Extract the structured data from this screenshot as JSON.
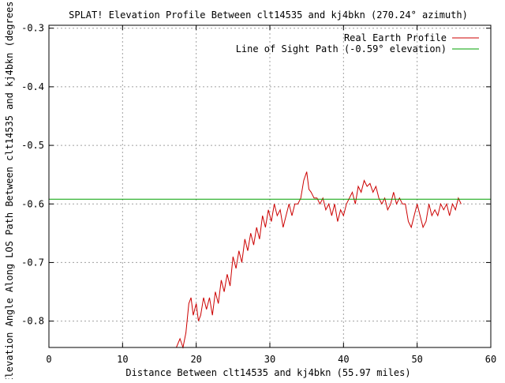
{
  "chart_data": {
    "type": "line",
    "title": "SPLAT! Elevation Profile Between clt14535 and kj4bkn (270.24° azimuth)",
    "xlabel": "Distance Between clt14535 and kj4bkn (55.97 miles)",
    "ylabel": "Elevation Angle Along LOS Path Between clt14535 and kj4bkn (degrees)",
    "xlim": [
      0,
      60
    ],
    "ylim": [
      -0.845,
      -0.295
    ],
    "xticks": [
      0,
      10,
      20,
      30,
      40,
      50,
      60
    ],
    "xtick_labels": [
      "0",
      "10",
      "20",
      "30",
      "40",
      "50",
      "60"
    ],
    "yticks": [
      -0.8,
      -0.7,
      -0.6,
      -0.5,
      -0.4,
      -0.3
    ],
    "ytick_labels": [
      "-0.8",
      "-0.7",
      "-0.6",
      "-0.5",
      "-0.4",
      "-0.3"
    ],
    "grid": true,
    "legend_position": "top-right",
    "series": [
      {
        "name": "Real Earth Profile",
        "color": "#cc0000",
        "x": [
          17.3,
          17.8,
          18.2,
          18.6,
          19.0,
          19.3,
          19.6,
          20.0,
          20.3,
          20.6,
          21.0,
          21.4,
          21.8,
          22.2,
          22.6,
          23.0,
          23.4,
          23.8,
          24.2,
          24.6,
          25.0,
          25.4,
          25.8,
          26.2,
          26.6,
          27.0,
          27.4,
          27.8,
          28.2,
          28.6,
          29.0,
          29.4,
          29.8,
          30.2,
          30.6,
          31.0,
          31.4,
          31.8,
          32.2,
          32.6,
          33.0,
          33.4,
          33.8,
          34.2,
          34.6,
          35.0,
          35.3,
          35.6,
          36.0,
          36.4,
          36.8,
          37.2,
          37.6,
          38.0,
          38.4,
          38.8,
          39.2,
          39.6,
          40.0,
          40.4,
          40.8,
          41.2,
          41.6,
          42.0,
          42.4,
          42.8,
          43.2,
          43.6,
          44.0,
          44.4,
          44.8,
          45.2,
          45.6,
          46.0,
          46.4,
          46.8,
          47.2,
          47.6,
          48.0,
          48.4,
          48.8,
          49.2,
          49.6,
          50.0,
          50.4,
          50.8,
          51.2,
          51.6,
          52.0,
          52.4,
          52.8,
          53.2,
          53.6,
          54.0,
          54.4,
          54.8,
          55.2,
          55.6,
          55.97
        ],
        "values": [
          -0.845,
          -0.83,
          -0.845,
          -0.82,
          -0.77,
          -0.76,
          -0.79,
          -0.77,
          -0.8,
          -0.79,
          -0.76,
          -0.78,
          -0.76,
          -0.79,
          -0.75,
          -0.77,
          -0.73,
          -0.75,
          -0.72,
          -0.74,
          -0.69,
          -0.71,
          -0.68,
          -0.7,
          -0.66,
          -0.68,
          -0.65,
          -0.67,
          -0.64,
          -0.66,
          -0.62,
          -0.64,
          -0.61,
          -0.63,
          -0.6,
          -0.62,
          -0.61,
          -0.64,
          -0.62,
          -0.6,
          -0.62,
          -0.6,
          -0.6,
          -0.59,
          -0.56,
          -0.545,
          -0.575,
          -0.58,
          -0.59,
          -0.59,
          -0.6,
          -0.59,
          -0.61,
          -0.6,
          -0.62,
          -0.6,
          -0.63,
          -0.61,
          -0.62,
          -0.6,
          -0.59,
          -0.58,
          -0.6,
          -0.57,
          -0.58,
          -0.56,
          -0.57,
          -0.565,
          -0.58,
          -0.57,
          -0.59,
          -0.6,
          -0.59,
          -0.61,
          -0.6,
          -0.58,
          -0.6,
          -0.59,
          -0.6,
          -0.6,
          -0.63,
          -0.64,
          -0.62,
          -0.6,
          -0.62,
          -0.64,
          -0.63,
          -0.6,
          -0.62,
          -0.61,
          -0.62,
          -0.6,
          -0.61,
          -0.6,
          -0.62,
          -0.6,
          -0.61,
          -0.59,
          -0.6
        ]
      },
      {
        "name": "Line of Sight Path (-0.59° elevation)",
        "color": "#00a000",
        "x": [
          0,
          60
        ],
        "values": [
          -0.592,
          -0.592
        ]
      }
    ]
  }
}
